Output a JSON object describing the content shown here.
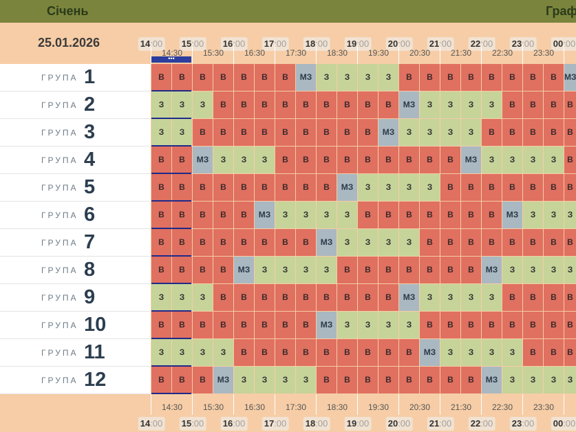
{
  "header": {
    "month": "Січень",
    "title": "Графік"
  },
  "date": "25.01.2026",
  "hours": [
    {
      "h": "14",
      "m": ":00"
    },
    {
      "h": "15",
      "m": ":00"
    },
    {
      "h": "16",
      "m": ":00"
    },
    {
      "h": "17",
      "m": ":00"
    },
    {
      "h": "18",
      "m": ":00"
    },
    {
      "h": "19",
      "m": ":00"
    },
    {
      "h": "20",
      "m": ":00"
    },
    {
      "h": "21",
      "m": ":00"
    },
    {
      "h": "22",
      "m": ":00"
    },
    {
      "h": "23",
      "m": ":00"
    },
    {
      "h": "00",
      "m": ":00"
    }
  ],
  "half_hours": [
    "14:30",
    "15:30",
    "16:30",
    "17:30",
    "18:30",
    "19:30",
    "20:30",
    "21:30",
    "22:30",
    "23:30"
  ],
  "now_indicator": "•••",
  "group_word": "ГРУПА",
  "legend": {
    "v": "В",
    "z": "З",
    "mz": "МЗ"
  },
  "groups": [
    {
      "num": "1",
      "slots": [
        "v",
        "v",
        "v",
        "v",
        "v",
        "v",
        "v",
        "mz",
        "z",
        "z",
        "z",
        "z",
        "v",
        "v",
        "v",
        "v",
        "v",
        "v",
        "v",
        "v",
        "mz"
      ]
    },
    {
      "num": "2",
      "slots": [
        "z",
        "z",
        "z",
        "v",
        "v",
        "v",
        "v",
        "v",
        "v",
        "v",
        "v",
        "v",
        "mz",
        "z",
        "z",
        "z",
        "z",
        "v",
        "v",
        "v",
        "v"
      ]
    },
    {
      "num": "3",
      "slots": [
        "z",
        "z",
        "v",
        "v",
        "v",
        "v",
        "v",
        "v",
        "v",
        "v",
        "v",
        "mz",
        "z",
        "z",
        "z",
        "z",
        "v",
        "v",
        "v",
        "v",
        "v"
      ]
    },
    {
      "num": "4",
      "slots": [
        "v",
        "v",
        "mz",
        "z",
        "z",
        "z",
        "v",
        "v",
        "v",
        "v",
        "v",
        "v",
        "v",
        "v",
        "v",
        "mz",
        "z",
        "z",
        "z",
        "z",
        "v"
      ]
    },
    {
      "num": "5",
      "slots": [
        "v",
        "v",
        "v",
        "v",
        "v",
        "v",
        "v",
        "v",
        "v",
        "mz",
        "z",
        "z",
        "z",
        "z",
        "v",
        "v",
        "v",
        "v",
        "v",
        "v",
        "v"
      ]
    },
    {
      "num": "6",
      "slots": [
        "v",
        "v",
        "v",
        "v",
        "v",
        "mz",
        "z",
        "z",
        "z",
        "z",
        "v",
        "v",
        "v",
        "v",
        "v",
        "v",
        "v",
        "mz",
        "z",
        "z",
        "z"
      ]
    },
    {
      "num": "7",
      "slots": [
        "v",
        "v",
        "v",
        "v",
        "v",
        "v",
        "v",
        "v",
        "mz",
        "z",
        "z",
        "z",
        "z",
        "v",
        "v",
        "v",
        "v",
        "v",
        "v",
        "v",
        "v"
      ]
    },
    {
      "num": "8",
      "slots": [
        "v",
        "v",
        "v",
        "v",
        "mz",
        "z",
        "z",
        "z",
        "z",
        "v",
        "v",
        "v",
        "v",
        "v",
        "v",
        "v",
        "mz",
        "z",
        "z",
        "z",
        "z"
      ]
    },
    {
      "num": "9",
      "slots": [
        "z",
        "z",
        "z",
        "v",
        "v",
        "v",
        "v",
        "v",
        "v",
        "v",
        "v",
        "v",
        "mz",
        "z",
        "z",
        "z",
        "z",
        "v",
        "v",
        "v",
        "v"
      ]
    },
    {
      "num": "10",
      "slots": [
        "v",
        "v",
        "v",
        "v",
        "v",
        "v",
        "v",
        "v",
        "mz",
        "z",
        "z",
        "z",
        "z",
        "v",
        "v",
        "v",
        "v",
        "v",
        "v",
        "v",
        "v"
      ]
    },
    {
      "num": "11",
      "slots": [
        "z",
        "z",
        "z",
        "z",
        "v",
        "v",
        "v",
        "v",
        "v",
        "v",
        "v",
        "v",
        "v",
        "mz",
        "z",
        "z",
        "z",
        "z",
        "v",
        "v",
        "v"
      ]
    },
    {
      "num": "12",
      "slots": [
        "v",
        "v",
        "v",
        "mz",
        "z",
        "z",
        "z",
        "z",
        "v",
        "v",
        "v",
        "v",
        "v",
        "v",
        "v",
        "v",
        "mz",
        "z",
        "z",
        "z",
        "z"
      ]
    }
  ],
  "colors": {
    "off": "#e07060",
    "on": "#c6d49a",
    "maybe": "#aab8c2",
    "header": "#7a843c",
    "page": "#f6cda6"
  }
}
